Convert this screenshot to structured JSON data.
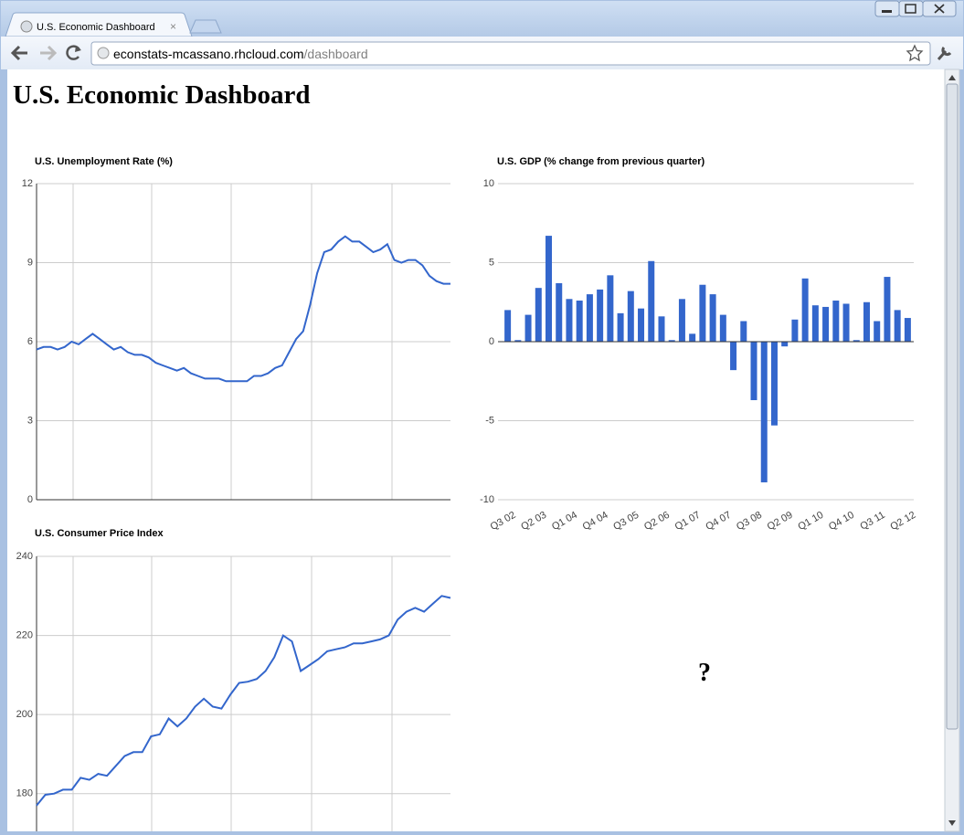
{
  "browser": {
    "tab_title": "U.S. Economic Dashboard",
    "url_host": "econstats-mcassano.rhcloud.com",
    "url_path": "/dashboard"
  },
  "page": {
    "heading": "U.S. Economic Dashboard",
    "placeholder": "?"
  },
  "chart_data": [
    {
      "type": "line",
      "title": "U.S. Unemployment Rate (%)",
      "color": "#3366cc",
      "grid": true,
      "ylim": [
        0,
        12
      ],
      "yticks": [
        0,
        3,
        6,
        9,
        12
      ],
      "values": [
        5.7,
        5.8,
        5.8,
        5.7,
        5.8,
        6.0,
        5.9,
        6.1,
        6.3,
        6.1,
        5.9,
        5.7,
        5.8,
        5.6,
        5.5,
        5.5,
        5.4,
        5.2,
        5.1,
        5.0,
        4.9,
        5.0,
        4.8,
        4.7,
        4.6,
        4.6,
        4.6,
        4.5,
        4.5,
        4.5,
        4.5,
        4.7,
        4.7,
        4.8,
        5.0,
        5.1,
        5.6,
        6.1,
        6.4,
        7.4,
        8.6,
        9.4,
        9.5,
        9.8,
        10.0,
        9.8,
        9.8,
        9.6,
        9.4,
        9.5,
        9.7,
        9.1,
        9.0,
        9.1,
        9.1,
        8.9,
        8.5,
        8.3,
        8.2,
        8.2
      ]
    },
    {
      "type": "bar",
      "title": "U.S. GDP (% change from previous quarter)",
      "color": "#3366cc",
      "grid": true,
      "ylim": [
        -10,
        10
      ],
      "yticks": [
        -10,
        -5,
        0,
        5,
        10
      ],
      "categories": [
        "Q3 02",
        null,
        null,
        "Q2 03",
        null,
        null,
        "Q1 04",
        null,
        null,
        "Q4 04",
        null,
        null,
        "Q3 05",
        null,
        null,
        "Q2 06",
        null,
        null,
        "Q1 07",
        null,
        null,
        "Q4 07",
        null,
        null,
        "Q3 08",
        null,
        null,
        "Q2 09",
        null,
        null,
        "Q1 10",
        null,
        null,
        "Q4 10",
        null,
        null,
        "Q3 11",
        null,
        null,
        "Q2 12"
      ],
      "values": [
        2.0,
        0.1,
        1.7,
        3.4,
        6.7,
        3.7,
        2.7,
        2.6,
        3.0,
        3.3,
        4.2,
        1.8,
        3.2,
        2.1,
        5.1,
        1.6,
        0.1,
        2.7,
        0.5,
        3.6,
        3.0,
        1.7,
        -1.8,
        1.3,
        -3.7,
        -8.9,
        -5.3,
        -0.3,
        1.4,
        4.0,
        2.3,
        2.2,
        2.6,
        2.4,
        0.1,
        2.5,
        1.3,
        4.1,
        2.0,
        1.5
      ]
    },
    {
      "type": "line",
      "title": "U.S. Consumer Price Index",
      "color": "#3366cc",
      "grid": true,
      "ylim": [
        170,
        240
      ],
      "yticks": [
        180,
        200,
        220,
        240
      ],
      "values": [
        177,
        179.7,
        180,
        181,
        181,
        184,
        183.5,
        185,
        184.5,
        187,
        189.5,
        190.5,
        190.5,
        194.5,
        195,
        199,
        197,
        199,
        202,
        204,
        202,
        201.5,
        205,
        208,
        208.3,
        209,
        211,
        214.5,
        220,
        218.5,
        211,
        212.5,
        214,
        216,
        216.5,
        217,
        218,
        218,
        218.5,
        219,
        220,
        224,
        226,
        227,
        226,
        228,
        230,
        229.5
      ]
    }
  ]
}
